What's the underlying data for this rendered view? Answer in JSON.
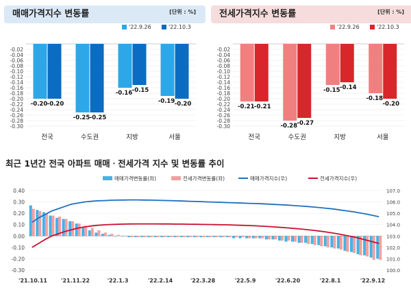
{
  "top_left": {
    "title": "매매가격지수 변동률",
    "unit": "[단위 : %]",
    "colors": {
      "s1": "#2ea7e8",
      "s2": "#0b6cc4"
    },
    "chart_data": {
      "type": "bar",
      "title": "매매가격지수 변동률",
      "categories": [
        "전국",
        "수도권",
        "지방",
        "서울"
      ],
      "series": [
        {
          "name": "'22.9.26",
          "values": [
            -0.2,
            -0.25,
            -0.16,
            -0.19
          ]
        },
        {
          "name": "'22.10.3",
          "values": [
            -0.2,
            -0.25,
            -0.15,
            -0.2
          ]
        }
      ],
      "value_labels": [
        [
          "-0.20",
          "-0.20"
        ],
        [
          "-0.25",
          "-0.25"
        ],
        [
          "-0.16",
          "-0.15"
        ],
        [
          "-0.19",
          "-0.20"
        ]
      ],
      "ylim": [
        -0.3,
        0.0
      ],
      "yticks": [
        "-0.02",
        "-0.04",
        "-0.06",
        "-0.08",
        "-0.10",
        "-0.12",
        "-0.14",
        "-0.16",
        "-0.18",
        "-0.20",
        "-0.22",
        "-0.24",
        "-0.26",
        "-0.28",
        "-0.30"
      ],
      "legend": "top-right"
    }
  },
  "top_right": {
    "title": "전세가격지수 변동률",
    "unit": "[단위 : %]",
    "colors": {
      "s1": "#f08080",
      "s2": "#d8262a"
    },
    "chart_data": {
      "type": "bar",
      "title": "전세가격지수 변동률",
      "categories": [
        "전국",
        "수도권",
        "지방",
        "서울"
      ],
      "series": [
        {
          "name": "'22.9.26",
          "values": [
            -0.21,
            -0.28,
            -0.15,
            -0.18
          ]
        },
        {
          "name": "'22.10.3",
          "values": [
            -0.21,
            -0.27,
            -0.14,
            -0.2
          ]
        }
      ],
      "value_labels": [
        [
          "-0.21",
          "-0.21"
        ],
        [
          "-0.28",
          "-0.27"
        ],
        [
          "-0.15",
          "-0.14"
        ],
        [
          "-0.18",
          "-0.20"
        ]
      ],
      "ylim": [
        -0.3,
        0.0
      ],
      "yticks": [
        "-0.02",
        "-0.04",
        "-0.06",
        "-0.08",
        "-0.10",
        "-0.12",
        "-0.14",
        "-0.16",
        "-0.18",
        "-0.20",
        "-0.22",
        "-0.24",
        "-0.26",
        "-0.28",
        "-0.30"
      ],
      "legend": "top-right"
    }
  },
  "bottom": {
    "title": "최근 1년간 전국 아파트 매매ㆍ전세가격 지수 및 변동률 추이",
    "colors": {
      "sale_bar": "#43b3e8",
      "jeonse_bar": "#f2a0a0",
      "sale_line": "#1f6fbf",
      "jeonse_line": "#c8102e"
    },
    "chart_data": {
      "type": "bar",
      "x_labels": [
        "'21.10.11",
        "'21.11.22",
        "'22.1.3",
        "'22.2.14",
        "'22.3.28",
        "'22.5.9",
        "'22.6.20",
        "'22.8.1",
        "'22.9.12"
      ],
      "left_axis": {
        "ylim": [
          -0.3,
          0.4
        ],
        "ticks": [
          "0.40",
          "0.30",
          "0.20",
          "0.10",
          "0.00",
          "-0.10",
          "-0.20",
          "-0.30"
        ]
      },
      "right_axis": {
        "ylim": [
          100.0,
          107.0
        ],
        "ticks": [
          "107.0",
          "106.0",
          "105.0",
          "104.0",
          "103.0",
          "102.0",
          "101.0",
          "100.0"
        ]
      },
      "series": [
        {
          "name": "매매가격변동률(좌)",
          "kind": "bar",
          "axis": "left",
          "values": [
            0.27,
            0.23,
            0.21,
            0.18,
            0.16,
            0.15,
            0.13,
            0.11,
            0.08,
            0.05,
            0.03,
            0.02,
            0.01,
            0.0,
            0.0,
            -0.01,
            -0.01,
            -0.01,
            -0.01,
            -0.01,
            -0.01,
            -0.01,
            -0.01,
            -0.01,
            -0.01,
            -0.01,
            -0.01,
            -0.01,
            -0.01,
            -0.01,
            -0.01,
            -0.02,
            -0.02,
            -0.02,
            -0.02,
            -0.02,
            -0.03,
            -0.03,
            -0.04,
            -0.05,
            -0.05,
            -0.06,
            -0.06,
            -0.07,
            -0.08,
            -0.09,
            -0.1,
            -0.11,
            -0.13,
            -0.14,
            -0.16,
            -0.17,
            -0.19,
            -0.2
          ]
        },
        {
          "name": "전세가격변동률(좌)",
          "kind": "bar",
          "axis": "left",
          "values": [
            0.24,
            0.22,
            0.2,
            0.18,
            0.17,
            0.15,
            0.13,
            0.11,
            0.09,
            0.07,
            0.05,
            0.03,
            0.02,
            0.01,
            0.0,
            -0.01,
            -0.01,
            -0.01,
            -0.01,
            -0.01,
            -0.01,
            -0.01,
            -0.01,
            -0.01,
            -0.01,
            -0.01,
            -0.01,
            -0.01,
            -0.01,
            -0.01,
            -0.01,
            -0.01,
            -0.01,
            -0.02,
            -0.02,
            -0.02,
            -0.03,
            -0.03,
            -0.04,
            -0.04,
            -0.05,
            -0.06,
            -0.07,
            -0.08,
            -0.09,
            -0.1,
            -0.11,
            -0.12,
            -0.14,
            -0.15,
            -0.17,
            -0.18,
            -0.21,
            -0.21
          ]
        },
        {
          "name": "매매가격지수(우)",
          "kind": "line",
          "axis": "right",
          "values": [
            104.2,
            104.6,
            104.9,
            105.2,
            105.4,
            105.6,
            105.8,
            105.9,
            106.0,
            106.05,
            106.1,
            106.12,
            106.15,
            106.16,
            106.17,
            106.18,
            106.18,
            106.17,
            106.16,
            106.15,
            106.13,
            106.12,
            106.1,
            106.08,
            106.06,
            106.04,
            106.02,
            106.0,
            105.98,
            105.96,
            105.94,
            105.92,
            105.9,
            105.88,
            105.86,
            105.84,
            105.81,
            105.78,
            105.75,
            105.72,
            105.68,
            105.64,
            105.6,
            105.55,
            105.5,
            105.44,
            105.38,
            105.3,
            105.22,
            105.14,
            105.04,
            104.94,
            104.82,
            104.7
          ]
        },
        {
          "name": "전세가격지수(우)",
          "kind": "line",
          "axis": "right",
          "values": [
            102.0,
            102.35,
            102.7,
            103.0,
            103.2,
            103.4,
            103.55,
            103.7,
            103.8,
            103.88,
            103.94,
            103.98,
            104.01,
            104.03,
            104.05,
            104.06,
            104.07,
            104.07,
            104.07,
            104.07,
            104.06,
            104.06,
            104.05,
            104.05,
            104.04,
            104.03,
            104.02,
            104.01,
            104.0,
            103.99,
            103.98,
            103.96,
            103.94,
            103.92,
            103.9,
            103.87,
            103.84,
            103.8,
            103.76,
            103.72,
            103.67,
            103.62,
            103.56,
            103.5,
            103.43,
            103.35,
            103.26,
            103.16,
            103.05,
            102.93,
            102.8,
            102.65,
            102.5,
            102.35
          ]
        }
      ],
      "legend": "top-center"
    }
  }
}
